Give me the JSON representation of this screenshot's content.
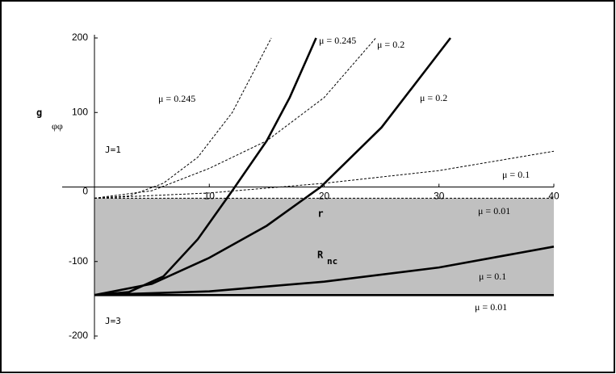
{
  "chart_data": {
    "type": "line",
    "xlabel": "r",
    "ylabel": "g",
    "ylabel_sub": "φφ",
    "xlim": [
      0,
      40
    ],
    "ylim": [
      -200,
      200
    ],
    "xticks": [
      10,
      20,
      30,
      40
    ],
    "yticks": [
      -200,
      -100,
      0,
      100,
      200
    ],
    "region": {
      "label": "R",
      "label_sub": "nc",
      "ymin": -145,
      "ymax": -15,
      "color": "#c0c0c0"
    },
    "annotations": [
      "J=1",
      "J=3"
    ],
    "series": [
      {
        "name": "μ = 0.245",
        "style": "dashed",
        "color": "#000000",
        "x": [
          0,
          3,
          6,
          9,
          12,
          15.4
        ],
        "values": [
          -15,
          -12,
          5,
          40,
          100,
          200
        ]
      },
      {
        "name": "μ = 0.245",
        "style": "solid",
        "color": "#000000",
        "x": [
          0,
          3,
          6,
          9,
          12,
          15,
          17,
          19.3
        ],
        "values": [
          -145,
          -141,
          -120,
          -70,
          -5,
          62,
          120,
          200
        ]
      },
      {
        "name": "μ = 0.2",
        "style": "dashed",
        "color": "#000000",
        "x": [
          0,
          5,
          10,
          15,
          20,
          24.5
        ],
        "values": [
          -15,
          -5,
          25,
          62,
          120,
          200
        ]
      },
      {
        "name": "μ = 0.2",
        "style": "solid",
        "color": "#000000",
        "x": [
          0,
          5,
          10,
          15,
          19.7,
          25,
          31
        ],
        "values": [
          -145,
          -130,
          -95,
          -52,
          0,
          80,
          200
        ]
      },
      {
        "name": "μ = 0.1",
        "style": "dashed",
        "color": "#000000",
        "x": [
          0,
          10,
          20,
          30,
          40
        ],
        "values": [
          -15,
          -8,
          5,
          22,
          48
        ]
      },
      {
        "name": "μ = 0.01",
        "style": "dashed",
        "color": "#000000",
        "x": [
          0,
          40
        ],
        "values": [
          -15,
          -15
        ]
      },
      {
        "name": "μ = 0.1",
        "style": "solid",
        "color": "#000000",
        "x": [
          0,
          10,
          20,
          30,
          40
        ],
        "values": [
          -145,
          -140,
          -127,
          -108,
          -80
        ]
      },
      {
        "name": "μ = 0.01",
        "style": "solid",
        "color": "#000000",
        "x": [
          0,
          40
        ],
        "values": [
          -145,
          -145
        ]
      }
    ]
  }
}
